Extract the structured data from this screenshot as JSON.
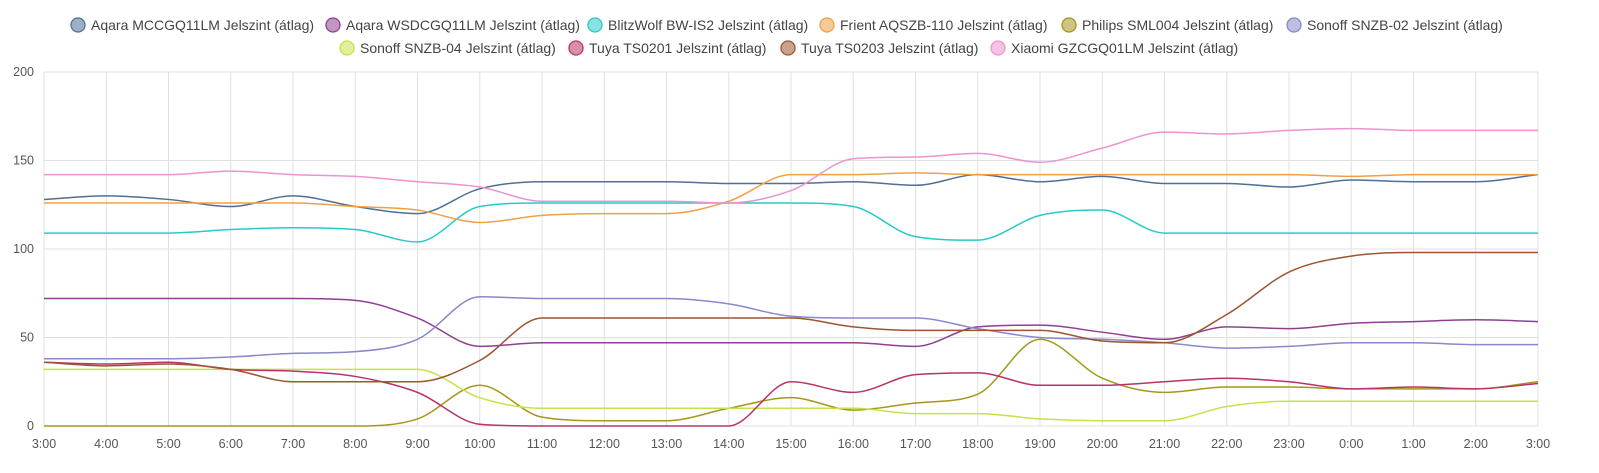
{
  "chart_data": {
    "type": "line",
    "title": "",
    "xlabel": "",
    "ylabel": "",
    "ylim": [
      0,
      200
    ],
    "y_ticks": [
      "0",
      "50",
      "100",
      "150",
      "200"
    ],
    "x": [
      "3:00",
      "4:00",
      "5:00",
      "6:00",
      "7:00",
      "8:00",
      "9:00",
      "10:00",
      "11:00",
      "12:00",
      "13:00",
      "14:00",
      "15:00",
      "16:00",
      "17:00",
      "18:00",
      "19:00",
      "20:00",
      "21:00",
      "22:00",
      "23:00",
      "0:00",
      "1:00",
      "2:00",
      "3:00"
    ],
    "grid": true,
    "legend_position": "top",
    "series": [
      {
        "name": "Aqara MCCGQ11LM Jelszint (átlag)",
        "color": "#4e6f96",
        "values": [
          128,
          130,
          128,
          124,
          130,
          124,
          120,
          134,
          138,
          138,
          138,
          137,
          137,
          138,
          136,
          142,
          138,
          141,
          137,
          137,
          135,
          139,
          138,
          138,
          142
        ]
      },
      {
        "name": "Aqara WSDCGQ11LM Jelszint (átlag)",
        "color": "#8e3f91",
        "values": [
          72,
          72,
          72,
          72,
          72,
          71,
          61,
          45,
          47,
          47,
          47,
          47,
          47,
          47,
          45,
          56,
          57,
          53,
          49,
          56,
          55,
          58,
          59,
          60,
          59
        ]
      },
      {
        "name": "BlitzWolf BW-IS2 Jelszint (átlag)",
        "color": "#2ac9c9",
        "values": [
          109,
          109,
          109,
          111,
          112,
          111,
          104,
          124,
          126,
          126,
          126,
          126,
          126,
          124,
          107,
          105,
          119,
          122,
          109,
          109,
          109,
          109,
          109,
          109,
          109
        ]
      },
      {
        "name": "Frient AQSZB-110 Jelszint (átlag)",
        "color": "#f0a044",
        "values": [
          126,
          126,
          126,
          126,
          126,
          124,
          122,
          115,
          119,
          120,
          120,
          127,
          142,
          142,
          143,
          142,
          142,
          142,
          142,
          142,
          142,
          141,
          142,
          142,
          142
        ]
      },
      {
        "name": "Philips SML004 Jelszint (átlag)",
        "color": "#a6961d",
        "values": [
          0,
          0,
          0,
          0,
          0,
          0,
          4,
          23,
          5,
          3,
          3,
          10,
          16,
          9,
          13,
          18,
          49,
          27,
          19,
          22,
          22,
          21,
          21,
          21,
          25
        ]
      },
      {
        "name": "Sonoff SNZB-02 Jelszint (átlag)",
        "color": "#8888cc",
        "values": [
          38,
          38,
          38,
          39,
          41,
          42,
          49,
          73,
          72,
          72,
          72,
          69,
          62,
          61,
          61,
          55,
          50,
          49,
          47,
          44,
          45,
          47,
          47,
          46,
          46
        ]
      },
      {
        "name": "Sonoff SNZB-04 Jelszint (átlag)",
        "color": "#c3e34a",
        "values": [
          32,
          32,
          32,
          32,
          32,
          32,
          32,
          16,
          10,
          10,
          10,
          10,
          10,
          10,
          7,
          7,
          4,
          3,
          3,
          11,
          14,
          14,
          14,
          14,
          14
        ]
      },
      {
        "name": "Tuya TS0201 Jelszint (átlag)",
        "color": "#b8336a",
        "values": [
          36,
          35,
          36,
          32,
          31,
          28,
          19,
          1,
          0,
          0,
          0,
          0,
          25,
          19,
          29,
          30,
          23,
          23,
          25,
          27,
          25,
          21,
          22,
          21,
          24
        ]
      },
      {
        "name": "Tuya TS0203 Jelszint (átlag)",
        "color": "#9c5531",
        "values": [
          36,
          34,
          35,
          32,
          25,
          25,
          25,
          37,
          61,
          61,
          61,
          61,
          61,
          56,
          54,
          54,
          54,
          48,
          47,
          63,
          87,
          96,
          98,
          98,
          98
        ]
      },
      {
        "name": "Xiaomi GZCGQ01LM Jelszint (átlag)",
        "color": "#ec93d0",
        "values": [
          142,
          142,
          142,
          144,
          142,
          141,
          138,
          135,
          127,
          127,
          127,
          126,
          133,
          151,
          152,
          154,
          149,
          157,
          166,
          165,
          167,
          168,
          167,
          167,
          167
        ]
      }
    ]
  }
}
